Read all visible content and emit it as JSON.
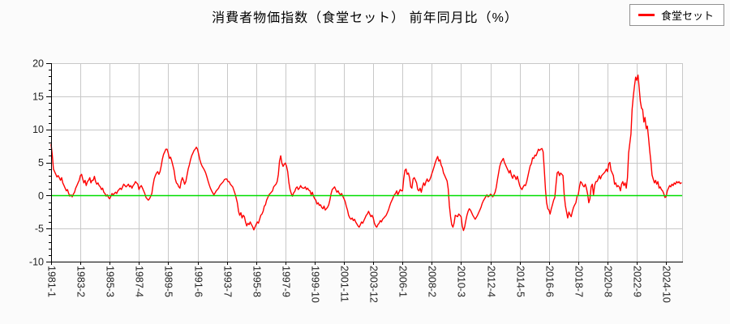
{
  "title": "消費者物価指数（食堂セット） 前年同月比（%）",
  "legend": {
    "label": "食堂セット"
  },
  "colors": {
    "series": "#ff0000",
    "zero_line": "#00dd00",
    "grid": "#c8c8c8",
    "axis": "#000000",
    "tick_label": "#222222",
    "background": "#fbfbfb",
    "plot_background": "#ffffff"
  },
  "chart_data": {
    "type": "line",
    "title": "消費者物価指数（食堂セット） 前年同月比（%）",
    "series_name": "食堂セット",
    "frequency": "monthly",
    "x_start": "1981-1",
    "x_end": "2025-11",
    "ylim": [
      -10,
      20
    ],
    "y_ticks": [
      -10,
      -5,
      0,
      5,
      10,
      15,
      20
    ],
    "y_minor_step": 1,
    "grid": true,
    "legend_position": "top-right",
    "zero_line": 0,
    "x_tick_labels": [
      "1981-1",
      "1983-2",
      "1985-3",
      "1987-4",
      "1989-5",
      "1991-6",
      "1993-7",
      "1995-8",
      "1997-9",
      "1999-10",
      "2001-11",
      "2003-12",
      "2006-1",
      "2008-2",
      "2010-3",
      "2012-4",
      "2014-5",
      "2016-6",
      "2018-7",
      "2020-8",
      "2022-9",
      "2024-10"
    ],
    "x_tick_month_indices": [
      0,
      25,
      50,
      75,
      100,
      125,
      150,
      175,
      200,
      225,
      250,
      275,
      300,
      325,
      350,
      375,
      400,
      425,
      450,
      475,
      500,
      525
    ],
    "values": [
      7.7,
      6.2,
      4.0,
      3.6,
      3.2,
      2.8,
      3.0,
      2.7,
      2.3,
      2.7,
      1.9,
      1.5,
      1.1,
      0.7,
      0.9,
      0.3,
      -0.1,
      0.1,
      -0.2,
      0.2,
      0.5,
      1.1,
      1.5,
      1.9,
      2.3,
      3.0,
      3.2,
      2.5,
      1.9,
      2.3,
      1.5,
      2.1,
      2.3,
      2.7,
      1.9,
      2.3,
      2.3,
      2.9,
      2.1,
      1.7,
      1.9,
      1.5,
      1.3,
      0.9,
      1.1,
      0.5,
      0.3,
      -0.1,
      0.1,
      -0.3,
      -0.5,
      -0.1,
      0.3,
      0.1,
      0.3,
      0.5,
      0.3,
      0.7,
      0.9,
      1.1,
      0.9,
      1.3,
      1.7,
      1.5,
      1.3,
      1.5,
      1.7,
      1.3,
      1.5,
      1.1,
      1.5,
      1.7,
      2.1,
      1.9,
      1.7,
      0.9,
      1.3,
      1.5,
      1.1,
      0.7,
      0.3,
      -0.3,
      -0.5,
      -0.7,
      -0.5,
      -0.1,
      0.3,
      1.5,
      2.5,
      3.0,
      3.4,
      3.6,
      3.2,
      3.6,
      4.5,
      5.5,
      6.2,
      6.6,
      7.0,
      7.0,
      6.4,
      5.6,
      5.8,
      5.2,
      4.5,
      3.8,
      2.5,
      1.9,
      1.7,
      1.3,
      1.1,
      2.1,
      2.7,
      2.3,
      1.7,
      2.1,
      3.0,
      4.0,
      4.6,
      5.4,
      6.0,
      6.4,
      6.8,
      7.0,
      7.3,
      7.0,
      6.2,
      5.4,
      4.8,
      4.4,
      4.1,
      3.8,
      3.4,
      2.8,
      2.2,
      1.6,
      1.1,
      0.7,
      0.4,
      0.1,
      0.4,
      0.7,
      0.9,
      1.1,
      1.5,
      1.7,
      1.9,
      2.1,
      2.4,
      2.5,
      2.5,
      2.1,
      2.1,
      1.7,
      1.5,
      1.3,
      0.8,
      0.3,
      -0.4,
      -1.1,
      -2.4,
      -3.0,
      -2.6,
      -3.4,
      -3.0,
      -3.2,
      -4.0,
      -4.6,
      -4.2,
      -4.4,
      -4.0,
      -4.4,
      -4.7,
      -5.2,
      -4.8,
      -4.4,
      -4.0,
      -4.2,
      -3.6,
      -3.0,
      -2.8,
      -2.4,
      -1.6,
      -1.4,
      -0.7,
      -0.3,
      0.1,
      0.3,
      0.5,
      0.7,
      1.3,
      1.5,
      1.7,
      2.1,
      3.2,
      5.2,
      6.0,
      4.9,
      4.4,
      4.7,
      4.9,
      4.4,
      3.6,
      1.9,
      0.9,
      0.3,
      -0.1,
      0.4,
      0.6,
      1.1,
      1.3,
      0.9,
      1.1,
      1.5,
      1.2,
      1.1,
      1.1,
      1.3,
      0.9,
      1.1,
      0.8,
      0.7,
      0.1,
      0.5,
      -0.1,
      -0.5,
      -0.7,
      -1.3,
      -1.1,
      -1.5,
      -1.4,
      -1.8,
      -2.0,
      -1.6,
      -2.2,
      -2.0,
      -1.8,
      -1.4,
      -0.7,
      0.3,
      0.9,
      1.1,
      1.3,
      0.9,
      0.5,
      0.7,
      0.3,
      0.1,
      0.3,
      -0.1,
      -0.5,
      -0.9,
      -1.6,
      -2.2,
      -3.0,
      -3.4,
      -3.6,
      -3.4,
      -3.8,
      -3.6,
      -4.0,
      -4.3,
      -4.6,
      -4.8,
      -4.4,
      -4.0,
      -4.2,
      -3.8,
      -3.4,
      -3.0,
      -2.8,
      -2.4,
      -2.8,
      -3.2,
      -3.0,
      -3.4,
      -4.2,
      -4.6,
      -4.8,
      -4.4,
      -4.2,
      -3.8,
      -4.0,
      -3.6,
      -3.4,
      -3.2,
      -3.0,
      -2.6,
      -2.2,
      -1.6,
      -1.1,
      -0.7,
      -0.3,
      0.1,
      0.3,
      0.7,
      0.1,
      0.5,
      0.9,
      0.7,
      0.7,
      2.5,
      3.8,
      4.0,
      3.2,
      3.4,
      2.7,
      1.3,
      1.1,
      2.5,
      2.7,
      2.3,
      1.9,
      0.9,
      0.7,
      1.1,
      0.5,
      1.3,
      1.9,
      1.5,
      2.1,
      2.5,
      2.1,
      2.3,
      2.7,
      3.3,
      3.8,
      4.4,
      5.0,
      5.5,
      5.9,
      5.2,
      5.4,
      4.6,
      4.2,
      3.4,
      3.0,
      2.6,
      2.2,
      1.0,
      -1.5,
      -3.2,
      -4.4,
      -4.8,
      -4.2,
      -3.0,
      -3.1,
      -3.2,
      -2.8,
      -3.0,
      -3.2,
      -4.6,
      -5.3,
      -4.8,
      -3.8,
      -3.0,
      -2.4,
      -2.0,
      -2.2,
      -2.6,
      -3.0,
      -3.3,
      -3.6,
      -3.3,
      -3.0,
      -2.6,
      -2.2,
      -1.8,
      -1.2,
      -0.8,
      -0.5,
      -0.2,
      0.1,
      -0.2,
      -0.1,
      0.2,
      0.1,
      -0.2,
      0.1,
      0.5,
      1.2,
      2.4,
      3.4,
      4.4,
      5.0,
      5.3,
      5.6,
      5.0,
      4.6,
      4.2,
      3.8,
      3.4,
      3.8,
      3.0,
      2.6,
      3.1,
      2.9,
      2.4,
      2.9,
      2.2,
      1.5,
      1.1,
      0.9,
      1.3,
      1.6,
      1.5,
      2.1,
      2.9,
      3.7,
      4.5,
      4.8,
      5.7,
      5.6,
      6.1,
      6.0,
      6.5,
      7.0,
      6.8,
      7.0,
      7.1,
      6.6,
      4.0,
      0.9,
      -1.1,
      -2.0,
      -2.2,
      -2.8,
      -2.0,
      -1.4,
      -0.7,
      -0.3,
      1.7,
      3.4,
      3.6,
      3.0,
      3.4,
      3.2,
      3.0,
      0.1,
      -1.5,
      -2.5,
      -3.4,
      -2.5,
      -2.9,
      -3.2,
      -2.4,
      -1.8,
      -1.4,
      -1.1,
      -0.1,
      0.1,
      1.3,
      2.1,
      1.9,
      1.5,
      1.3,
      1.7,
      1.1,
      0.2,
      -1.1,
      -0.5,
      1.3,
      1.7,
      0.1,
      1.5,
      2.1,
      2.1,
      2.5,
      3.0,
      2.5,
      3.0,
      3.2,
      3.4,
      3.6,
      4.0,
      3.6,
      4.8,
      5.0,
      3.8,
      3.4,
      3.0,
      1.7,
      1.9,
      1.3,
      1.5,
      1.3,
      0.7,
      1.7,
      2.1,
      1.5,
      1.9,
      1.1,
      2.7,
      6.4,
      7.9,
      9.3,
      13.0,
      15.0,
      16.5,
      17.9,
      17.4,
      18.2,
      16.3,
      14.2,
      13.2,
      13.0,
      11.1,
      11.8,
      10.1,
      10.5,
      8.7,
      6.8,
      5.2,
      3.1,
      2.5,
      1.9,
      2.3,
      1.7,
      2.1,
      1.1,
      1.3,
      0.9,
      0.7,
      0.3,
      -0.3,
      -0.2,
      0.7,
      1.1,
      1.5,
      1.3,
      1.7,
      1.5,
      1.9,
      1.7,
      2.1,
      1.9,
      2.1,
      1.8,
      1.9
    ]
  }
}
